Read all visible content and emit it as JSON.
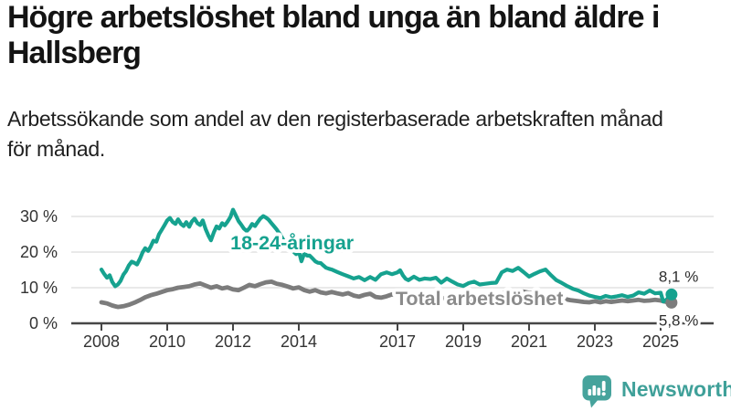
{
  "header": {
    "title": "Högre arbetslöshet bland unga än bland äldre i\nHallsberg",
    "subtitle": "Arbetssökande som andel av den registerbaserade arbetskraften månad\nför månad."
  },
  "brand": {
    "name": "Newsworthy",
    "icon": "bar-chart-speech-bubble-icon",
    "icon_color": "#46a39c",
    "text_color": "#3fa099"
  },
  "chart_data": {
    "type": "line",
    "title": "Högre arbetslöshet bland unga än bland äldre i Hallsberg",
    "subtitle": "Arbetssökande som andel av den registerbaserade arbetskraften månad för månad.",
    "unit": "%",
    "grid": "horizontal",
    "legend_position": "inline-labels",
    "xlabel": "",
    "ylabel": "",
    "ylim": [
      0,
      33
    ],
    "x_domain_years": [
      2008.0,
      2025.4
    ],
    "x_ticks": [
      2008,
      2010,
      2012,
      2014,
      2017,
      2019,
      2021,
      2023,
      2025
    ],
    "y_ticks": [
      {
        "value": 0,
        "label": "0 %"
      },
      {
        "value": 10,
        "label": "10 %"
      },
      {
        "value": 20,
        "label": "20 %"
      },
      {
        "value": 30,
        "label": "30 %"
      }
    ],
    "axis_color": "#474747",
    "grid_color": "#dcdcdc",
    "series": [
      {
        "name": "Total arbetslöshet",
        "color": "#7c7c7c",
        "label_color": "#8b8b8b",
        "line_width": 4.8,
        "end_label": "5,8 %",
        "end_value": 5.8,
        "label_anchor": {
          "year": 2016.94,
          "value": 5.1
        },
        "end_label_offset": {
          "dx": -14,
          "dy": 25
        },
        "points": [
          [
            2008.0,
            5.9
          ],
          [
            2008.17,
            5.6
          ],
          [
            2008.33,
            5.0
          ],
          [
            2008.5,
            4.6
          ],
          [
            2008.67,
            4.8
          ],
          [
            2008.83,
            5.2
          ],
          [
            2009.0,
            5.8
          ],
          [
            2009.17,
            6.5
          ],
          [
            2009.33,
            7.3
          ],
          [
            2009.5,
            7.9
          ],
          [
            2009.67,
            8.3
          ],
          [
            2009.83,
            8.8
          ],
          [
            2010.0,
            9.3
          ],
          [
            2010.17,
            9.6
          ],
          [
            2010.33,
            10.0
          ],
          [
            2010.5,
            10.2
          ],
          [
            2010.67,
            10.4
          ],
          [
            2010.83,
            10.9
          ],
          [
            2011.0,
            11.2
          ],
          [
            2011.17,
            10.6
          ],
          [
            2011.33,
            10.0
          ],
          [
            2011.5,
            10.4
          ],
          [
            2011.67,
            9.8
          ],
          [
            2011.83,
            10.1
          ],
          [
            2012.0,
            9.5
          ],
          [
            2012.17,
            9.3
          ],
          [
            2012.33,
            10.0
          ],
          [
            2012.5,
            10.8
          ],
          [
            2012.67,
            10.4
          ],
          [
            2012.83,
            11.0
          ],
          [
            2013.0,
            11.5
          ],
          [
            2013.17,
            11.7
          ],
          [
            2013.33,
            11.1
          ],
          [
            2013.5,
            10.8
          ],
          [
            2013.67,
            10.3
          ],
          [
            2013.83,
            9.8
          ],
          [
            2014.0,
            10.1
          ],
          [
            2014.17,
            9.3
          ],
          [
            2014.33,
            8.9
          ],
          [
            2014.5,
            9.3
          ],
          [
            2014.67,
            8.7
          ],
          [
            2014.83,
            8.4
          ],
          [
            2015.0,
            8.8
          ],
          [
            2015.17,
            8.4
          ],
          [
            2015.33,
            8.1
          ],
          [
            2015.5,
            8.5
          ],
          [
            2015.67,
            7.8
          ],
          [
            2015.83,
            7.5
          ],
          [
            2016.0,
            8.0
          ],
          [
            2016.17,
            8.3
          ],
          [
            2016.33,
            7.4
          ],
          [
            2016.5,
            7.2
          ],
          [
            2016.67,
            7.6
          ],
          [
            2016.83,
            8.1
          ],
          [
            2017.0,
            7.9
          ],
          [
            2017.33,
            7.6
          ],
          [
            2017.67,
            7.3
          ],
          [
            2018.0,
            7.2
          ],
          [
            2018.33,
            7.0
          ],
          [
            2018.67,
            6.9
          ],
          [
            2019.0,
            6.9
          ],
          [
            2019.33,
            7.0
          ],
          [
            2019.67,
            7.2
          ],
          [
            2020.0,
            7.4
          ],
          [
            2020.25,
            8.6
          ],
          [
            2020.5,
            9.1
          ],
          [
            2020.75,
            9.0
          ],
          [
            2021.0,
            8.6
          ],
          [
            2021.33,
            8.2
          ],
          [
            2021.67,
            7.6
          ],
          [
            2022.0,
            7.0
          ],
          [
            2022.25,
            6.5
          ],
          [
            2022.5,
            6.2
          ],
          [
            2022.67,
            6.0
          ],
          [
            2022.83,
            5.9
          ],
          [
            2023.0,
            6.2
          ],
          [
            2023.17,
            5.9
          ],
          [
            2023.33,
            6.2
          ],
          [
            2023.5,
            6.0
          ],
          [
            2023.67,
            6.2
          ],
          [
            2023.83,
            6.4
          ],
          [
            2024.0,
            6.2
          ],
          [
            2024.17,
            6.4
          ],
          [
            2024.33,
            6.6
          ],
          [
            2024.5,
            6.3
          ],
          [
            2024.67,
            6.4
          ],
          [
            2024.83,
            6.6
          ],
          [
            2025.0,
            6.4
          ],
          [
            2025.17,
            6.0
          ],
          [
            2025.33,
            5.8
          ]
        ]
      },
      {
        "name": "18-24-åringar",
        "color": "#16a28f",
        "label_color": "#16a28f",
        "line_width": 4.2,
        "end_label": "8,1 %",
        "end_value": 8.1,
        "label_anchor": {
          "year": 2011.92,
          "value": 20.8
        },
        "end_label_offset": {
          "dx": -14,
          "dy": -14
        },
        "points": [
          [
            2008.0,
            15.1
          ],
          [
            2008.08,
            13.9
          ],
          [
            2008.17,
            12.8
          ],
          [
            2008.25,
            13.5
          ],
          [
            2008.33,
            11.6
          ],
          [
            2008.42,
            10.4
          ],
          [
            2008.5,
            10.9
          ],
          [
            2008.58,
            11.9
          ],
          [
            2008.67,
            13.7
          ],
          [
            2008.75,
            14.7
          ],
          [
            2008.83,
            16.2
          ],
          [
            2008.92,
            17.3
          ],
          [
            2009.0,
            17.0
          ],
          [
            2009.08,
            16.5
          ],
          [
            2009.17,
            18.1
          ],
          [
            2009.25,
            19.9
          ],
          [
            2009.33,
            21.1
          ],
          [
            2009.42,
            20.3
          ],
          [
            2009.5,
            21.6
          ],
          [
            2009.58,
            23.2
          ],
          [
            2009.67,
            22.9
          ],
          [
            2009.75,
            25.0
          ],
          [
            2009.83,
            26.2
          ],
          [
            2009.92,
            27.6
          ],
          [
            2010.0,
            28.9
          ],
          [
            2010.08,
            29.6
          ],
          [
            2010.17,
            28.4
          ],
          [
            2010.25,
            27.9
          ],
          [
            2010.33,
            29.2
          ],
          [
            2010.42,
            27.9
          ],
          [
            2010.5,
            27.3
          ],
          [
            2010.58,
            28.4
          ],
          [
            2010.67,
            27.1
          ],
          [
            2010.75,
            28.6
          ],
          [
            2010.83,
            29.4
          ],
          [
            2010.92,
            28.1
          ],
          [
            2011.0,
            27.6
          ],
          [
            2011.08,
            28.9
          ],
          [
            2011.17,
            26.4
          ],
          [
            2011.25,
            24.7
          ],
          [
            2011.33,
            23.3
          ],
          [
            2011.42,
            25.6
          ],
          [
            2011.5,
            27.2
          ],
          [
            2011.58,
            26.6
          ],
          [
            2011.67,
            28.1
          ],
          [
            2011.75,
            27.5
          ],
          [
            2011.83,
            28.5
          ],
          [
            2011.92,
            29.8
          ],
          [
            2012.0,
            31.9
          ],
          [
            2012.08,
            30.4
          ],
          [
            2012.17,
            28.7
          ],
          [
            2012.25,
            27.7
          ],
          [
            2012.33,
            26.6
          ],
          [
            2012.42,
            25.9
          ],
          [
            2012.5,
            26.7
          ],
          [
            2012.58,
            27.9
          ],
          [
            2012.67,
            27.3
          ],
          [
            2012.75,
            28.4
          ],
          [
            2012.83,
            29.4
          ],
          [
            2012.92,
            30.1
          ],
          [
            2013.0,
            29.7
          ],
          [
            2013.08,
            29.1
          ],
          [
            2013.17,
            28.1
          ],
          [
            2013.25,
            27.2
          ],
          [
            2013.33,
            26.3
          ],
          [
            2013.42,
            25.1
          ],
          [
            2013.5,
            23.9
          ],
          [
            2013.58,
            22.6
          ],
          [
            2013.67,
            21.4
          ],
          [
            2013.75,
            20.6
          ],
          [
            2013.83,
            20.2
          ],
          [
            2013.92,
            19.4
          ],
          [
            2014.0,
            20.3
          ],
          [
            2014.08,
            17.4
          ],
          [
            2014.17,
            19.7
          ],
          [
            2014.25,
            19.0
          ],
          [
            2014.33,
            19.0
          ],
          [
            2014.42,
            18.2
          ],
          [
            2014.5,
            17.4
          ],
          [
            2014.58,
            17.0
          ],
          [
            2014.67,
            16.9
          ],
          [
            2014.75,
            16.2
          ],
          [
            2014.83,
            15.6
          ],
          [
            2014.92,
            15.3
          ],
          [
            2015.0,
            15.1
          ],
          [
            2015.17,
            14.4
          ],
          [
            2015.33,
            13.8
          ],
          [
            2015.5,
            13.2
          ],
          [
            2015.67,
            12.6
          ],
          [
            2015.83,
            13.0
          ],
          [
            2016.0,
            12.1
          ],
          [
            2016.17,
            13.0
          ],
          [
            2016.33,
            12.2
          ],
          [
            2016.5,
            13.8
          ],
          [
            2016.67,
            14.3
          ],
          [
            2016.83,
            13.8
          ],
          [
            2017.0,
            14.3
          ],
          [
            2017.08,
            14.9
          ],
          [
            2017.17,
            13.4
          ],
          [
            2017.25,
            12.5
          ],
          [
            2017.33,
            12.1
          ],
          [
            2017.5,
            13.1
          ],
          [
            2017.67,
            12.2
          ],
          [
            2017.83,
            12.6
          ],
          [
            2018.0,
            12.4
          ],
          [
            2018.17,
            12.8
          ],
          [
            2018.33,
            11.4
          ],
          [
            2018.5,
            12.6
          ],
          [
            2018.67,
            11.7
          ],
          [
            2018.83,
            10.9
          ],
          [
            2019.0,
            10.5
          ],
          [
            2019.17,
            11.3
          ],
          [
            2019.33,
            11.7
          ],
          [
            2019.5,
            10.9
          ],
          [
            2019.67,
            11.1
          ],
          [
            2019.83,
            11.3
          ],
          [
            2020.0,
            11.4
          ],
          [
            2020.17,
            14.3
          ],
          [
            2020.33,
            15.1
          ],
          [
            2020.5,
            14.7
          ],
          [
            2020.67,
            15.6
          ],
          [
            2020.83,
            14.4
          ],
          [
            2021.0,
            13.1
          ],
          [
            2021.17,
            13.9
          ],
          [
            2021.33,
            14.6
          ],
          [
            2021.5,
            15.1
          ],
          [
            2021.67,
            13.5
          ],
          [
            2021.83,
            12.1
          ],
          [
            2022.0,
            11.3
          ],
          [
            2022.17,
            10.4
          ],
          [
            2022.33,
            9.7
          ],
          [
            2022.5,
            9.2
          ],
          [
            2022.67,
            8.4
          ],
          [
            2022.83,
            7.8
          ],
          [
            2023.0,
            7.4
          ],
          [
            2023.17,
            7.1
          ],
          [
            2023.33,
            7.7
          ],
          [
            2023.5,
            7.3
          ],
          [
            2023.67,
            7.6
          ],
          [
            2023.83,
            7.9
          ],
          [
            2024.0,
            7.4
          ],
          [
            2024.17,
            7.8
          ],
          [
            2024.33,
            8.7
          ],
          [
            2024.5,
            8.3
          ],
          [
            2024.67,
            9.2
          ],
          [
            2024.83,
            8.4
          ],
          [
            2025.0,
            8.6
          ],
          [
            2025.08,
            6.1
          ],
          [
            2025.17,
            6.6
          ],
          [
            2025.33,
            8.1
          ]
        ]
      }
    ]
  }
}
